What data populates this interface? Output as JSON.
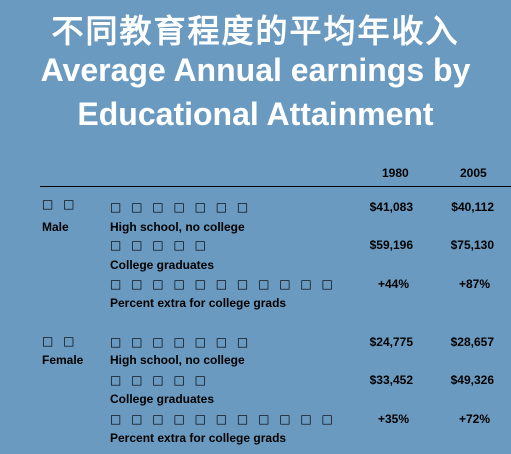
{
  "title": {
    "cn": "不同教育程度的平均年收入",
    "en_line1": "Average Annual earnings by",
    "en_line2": "Educational Attainment"
  },
  "table": {
    "columns": [
      "1980",
      "2005"
    ],
    "groups": [
      {
        "glyphs": "□ □",
        "label": "Male",
        "rows": [
          {
            "glyphs": "□ □ □ □ □ □ □",
            "label": "High school, no college",
            "v1980": "$41,083",
            "v2005": "$40,112"
          },
          {
            "glyphs": "□ □ □ □ □",
            "label": "College graduates",
            "v1980": "$59,196",
            "v2005": "$75,130"
          },
          {
            "glyphs": "□ □ □ □ □ □ □ □ □ □ □",
            "label": "Percent extra for college grads",
            "v1980": "+44%",
            "v2005": "+87%"
          }
        ]
      },
      {
        "glyphs": "□ □",
        "label": "Female",
        "rows": [
          {
            "glyphs": "□ □ □ □ □ □ □",
            "label": "High school, no college",
            "v1980": "$24,775",
            "v2005": "$28,657"
          },
          {
            "glyphs": "□ □ □ □ □",
            "label": "College graduates",
            "v1980": "$33,452",
            "v2005": "$49,326"
          },
          {
            "glyphs": "□ □ □ □ □ □ □ □ □ □ □",
            "label": "Percent extra for college grads",
            "v1980": "+35%",
            "v2005": "+72%"
          }
        ]
      }
    ]
  }
}
